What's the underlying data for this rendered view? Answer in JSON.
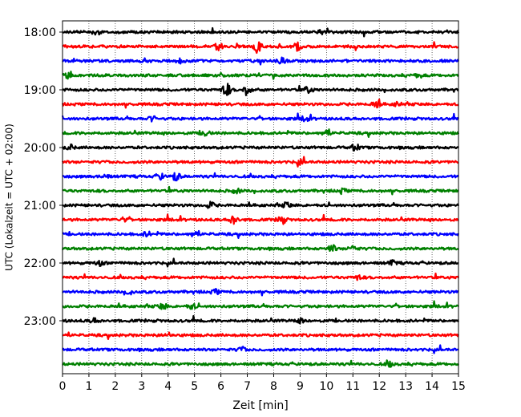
{
  "chart_data": {
    "type": "line",
    "title": "",
    "xlabel": "Zeit  [min]",
    "ylabel": "UTC (Lokalzeit = UTC + 02:00)",
    "xlim": [
      0,
      15
    ],
    "xticks": [
      0,
      1,
      2,
      3,
      4,
      5,
      6,
      7,
      8,
      9,
      10,
      11,
      12,
      13,
      14,
      15
    ],
    "xtick_labels": [
      "0",
      "1",
      "2",
      "3",
      "4",
      "5",
      "6",
      "7",
      "8",
      "9",
      "10",
      "11",
      "12",
      "13",
      "14",
      "15"
    ],
    "yticks": [
      {
        "label": "18:00",
        "trace_index": 0
      },
      {
        "label": "19:00",
        "trace_index": 4
      },
      {
        "label": "20:00",
        "trace_index": 8
      },
      {
        "label": "21:00",
        "trace_index": 12
      },
      {
        "label": "22:00",
        "trace_index": 16
      },
      {
        "label": "23:00",
        "trace_index": 20
      }
    ],
    "grid": "vertical dotted lines at each minute",
    "trace_interval_min": 15,
    "trace_colors": [
      "#000000",
      "#ff0000",
      "#0000ff",
      "#008000"
    ],
    "traces": [
      {
        "start": "18:00",
        "color": "#000000",
        "bursts": [
          [
            1.3,
            0.9
          ],
          [
            9.8,
            0.8
          ]
        ]
      },
      {
        "start": "18:15",
        "color": "#ff0000",
        "bursts": [
          [
            5.9,
            1.3
          ],
          [
            7.4,
            1.9
          ],
          [
            8.9,
            1.6
          ]
        ]
      },
      {
        "start": "18:30",
        "color": "#0000ff",
        "bursts": [
          [
            4.5,
            0.7
          ],
          [
            8.3,
            0.9
          ]
        ]
      },
      {
        "start": "18:45",
        "color": "#008000",
        "bursts": [
          [
            0.2,
            0.8
          ],
          [
            13.5,
            0.7
          ]
        ]
      },
      {
        "start": "19:00",
        "color": "#000000",
        "bursts": [
          [
            6.2,
            2.6
          ],
          [
            7.0,
            2.0
          ],
          [
            9.3,
            1.2
          ]
        ]
      },
      {
        "start": "19:15",
        "color": "#ff0000",
        "bursts": [
          [
            11.9,
            1.4
          ],
          [
            12.7,
            0.7
          ]
        ]
      },
      {
        "start": "19:30",
        "color": "#0000ff",
        "bursts": [
          [
            3.4,
            0.8
          ],
          [
            9.2,
            0.9
          ]
        ]
      },
      {
        "start": "19:45",
        "color": "#008000",
        "bursts": [
          [
            5.4,
            1.0
          ],
          [
            10.0,
            1.0
          ]
        ]
      },
      {
        "start": "20:00",
        "color": "#000000",
        "bursts": [
          [
            0.3,
            0.9
          ],
          [
            11.1,
            1.2
          ]
        ]
      },
      {
        "start": "20:15",
        "color": "#ff0000",
        "bursts": [
          [
            9.0,
            0.8
          ]
        ]
      },
      {
        "start": "20:30",
        "color": "#0000ff",
        "bursts": [
          [
            1.6,
            0.9
          ],
          [
            4.3,
            1.5
          ],
          [
            3.7,
            1.0
          ]
        ]
      },
      {
        "start": "20:45",
        "color": "#008000",
        "bursts": [
          [
            6.6,
            0.8
          ],
          [
            10.6,
            0.8
          ]
        ]
      },
      {
        "start": "21:00",
        "color": "#000000",
        "bursts": [
          [
            5.6,
            1.1
          ],
          [
            8.5,
            1.0
          ]
        ]
      },
      {
        "start": "21:15",
        "color": "#ff0000",
        "bursts": [
          [
            6.5,
            1.8
          ],
          [
            8.3,
            1.6
          ],
          [
            2.3,
            0.7
          ]
        ]
      },
      {
        "start": "21:30",
        "color": "#0000ff",
        "bursts": [
          [
            3.2,
            0.9
          ],
          [
            5.0,
            0.9
          ]
        ]
      },
      {
        "start": "21:45",
        "color": "#008000",
        "bursts": [
          [
            10.2,
            1.3
          ],
          [
            11.0,
            1.1
          ]
        ]
      },
      {
        "start": "22:00",
        "color": "#000000",
        "bursts": [
          [
            1.4,
            0.9
          ],
          [
            12.5,
            0.8
          ]
        ]
      },
      {
        "start": "22:15",
        "color": "#ff0000",
        "bursts": [
          [
            11.2,
            0.8
          ]
        ]
      },
      {
        "start": "22:30",
        "color": "#0000ff",
        "bursts": [
          [
            2.5,
            1.0
          ],
          [
            5.8,
            0.8
          ]
        ]
      },
      {
        "start": "22:45",
        "color": "#008000",
        "bursts": [
          [
            3.8,
            1.2
          ],
          [
            4.9,
            1.0
          ]
        ]
      },
      {
        "start": "23:00",
        "color": "#000000",
        "bursts": [
          [
            1.2,
            0.8
          ],
          [
            9.0,
            0.8
          ]
        ]
      },
      {
        "start": "23:15",
        "color": "#ff0000",
        "bursts": [
          [
            4.0,
            0.7
          ]
        ]
      },
      {
        "start": "23:30",
        "color": "#0000ff",
        "bursts": [
          [
            6.8,
            0.8
          ]
        ]
      },
      {
        "start": "23:45",
        "color": "#008000",
        "bursts": [
          [
            12.4,
            0.9
          ]
        ]
      }
    ]
  }
}
